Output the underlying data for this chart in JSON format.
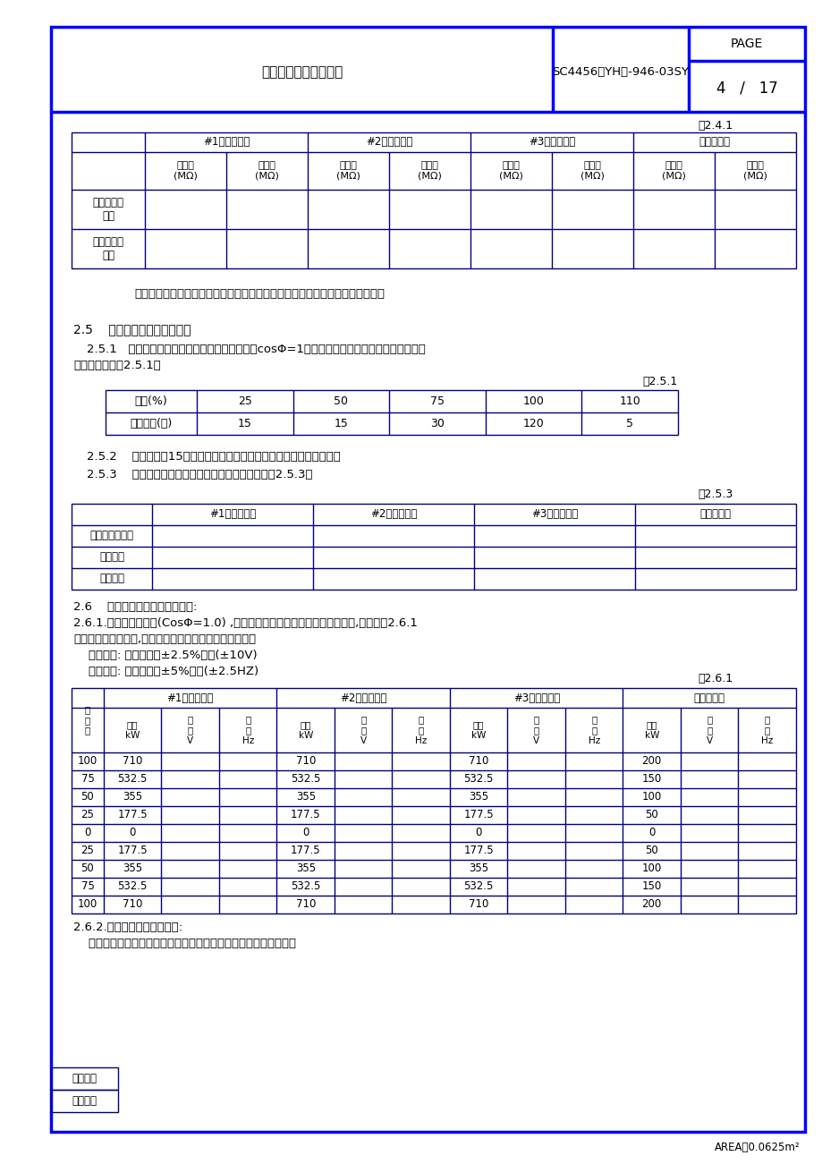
{
  "page_title": "电气部分系泊试验大纲",
  "doc_number": "SC4456（YH）-946-03SY",
  "page_num": "4",
  "page_total": "17",
  "area_text": "AREA：0.0625m²",
  "blue": "#0000FF",
  "navy": "#000080",
  "black": "#000000",
  "table241_label": "表2.4.1",
  "table241_headers": [
    "#1柴油发电机",
    "#2柴油发电机",
    "#3柴油发电机",
    "应急发电机"
  ],
  "table241_rows": [
    "发电机绕组\n对地",
    "空间加热器\n对地"
  ],
  "note241": "注意：对于半导体整流器，试验时应与主电路断开，用万用表测量其绝缘电阴。",
  "section25_title": "2.5    柴油发电机组的负荷试验",
  "section251_text1": "2.5.1   发电机的负荷试验将用一个可调水电阴（cosΦ=1）连接到主配电板的母线排。发电机的",
  "section251_text2": "运行时间按照表2.5.1。",
  "table251_label": "表2.5.1",
  "table251_row1": [
    "负荷(%)",
    "25",
    "50",
    "75",
    "100",
    "110"
  ],
  "table251_row2": [
    "运行时间(分)",
    "15",
    "15",
    "30",
    "120",
    "5"
  ],
  "section252_text": "2.5.2    在工况稳兢15分钟后各运行工况下的电压、电流、频率和功率。",
  "section253_text": "2.5.3    负载试验后记录每相绕组和轴承温度，记入表2.5.3。",
  "table253_label": "表2.5.3",
  "table253_headers": [
    "#1柴油发电机",
    "#2柴油发电机",
    "#3柴油发电机",
    "应急发电机"
  ],
  "table253_rows": [
    "发电机绕组温度",
    "轴承温度",
    "环境温度"
  ],
  "section26_title": "2.6    柴油发电机调压和调速试验:",
  "section261_text1": "2.6.1.用水电阴作负载(CosΦ=1.0) ,把每一台发电机调整到额定电压和频率,然后按表2.6.1",
  "section261_text2": "调节每台发电机负载,测量并记录每档电压、频率变化値。",
  "section261_text3": "    电压变化: 额定电压的±2.5%之内(±10V)",
  "section261_text4": "    频率变化: 额定频率的±5%之内(±2.5HZ)",
  "table261_label": "表2.6.1",
  "table261_main_headers": [
    "#1柴油发电机",
    "#2柴油发电机",
    "#3柴油发电机",
    "应急发电机"
  ],
  "table261_load_col": [
    "负荷率",
    "100",
    "75",
    "50",
    "25",
    "0",
    "25",
    "50",
    "75",
    "100"
  ],
  "table261_sub_col1": [
    "输出\nkW",
    "电\n压\nV",
    "频\n率\nHz"
  ],
  "table261_data": [
    [
      "710",
      "",
      "",
      "710",
      "",
      "",
      "710",
      "",
      "",
      "200",
      "",
      ""
    ],
    [
      "532.5",
      "",
      "",
      "532.5",
      "",
      "",
      "532.5",
      "",
      "",
      "150",
      "",
      ""
    ],
    [
      "355",
      "",
      "",
      "355",
      "",
      "",
      "355",
      "",
      "",
      "100",
      "",
      ""
    ],
    [
      "177.5",
      "",
      "",
      "177.5",
      "",
      "",
      "177.5",
      "",
      "",
      "50",
      "",
      ""
    ],
    [
      "0",
      "",
      "",
      "0",
      "",
      "",
      "0",
      "",
      "",
      "0",
      "",
      ""
    ],
    [
      "177.5",
      "",
      "",
      "177.5",
      "",
      "",
      "177.5",
      "",
      "",
      "50",
      "",
      ""
    ],
    [
      "355",
      "",
      "",
      "355",
      "",
      "",
      "355",
      "",
      "",
      "100",
      "",
      ""
    ],
    [
      "532.5",
      "",
      "",
      "532.5",
      "",
      "",
      "532.5",
      "",
      "",
      "150",
      "",
      ""
    ],
    [
      "710",
      "",
      "",
      "710",
      "",
      "",
      "710",
      "",
      "",
      "200",
      "",
      ""
    ]
  ],
  "section262_text1": "2.6.2.柴油发电机组加载试验:",
  "section262_text2": "    本试验要验证瞬态电压、频率变化及恢复时间应在允许的范围内。",
  "footer_left1": "旧底图总",
  "footer_left2": "底图总号"
}
